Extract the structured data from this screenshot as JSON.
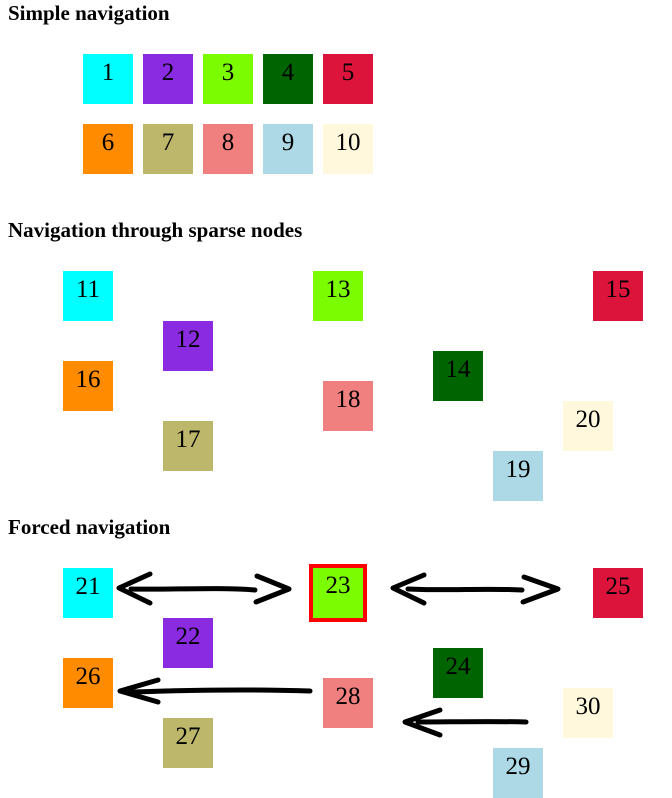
{
  "sections": {
    "simple": {
      "title": "Simple navigation"
    },
    "sparse": {
      "title": "Navigation through sparse nodes"
    },
    "forced": {
      "title": "Forced navigation"
    }
  },
  "colors": {
    "cyan": "#00ffff",
    "blueviolet": "#8a2be2",
    "lawngreen": "#7cfc00",
    "darkgreen": "#006400",
    "crimson": "#dc143c",
    "darkorange": "#ff8c00",
    "darkkhaki": "#bdb76b",
    "lightcoral": "#f08080",
    "lightblue": "#add8e6",
    "cornsilk": "#fff8dc",
    "focus_outline": "#ff0000",
    "arrow": "#000000"
  },
  "nodes": [
    {
      "label": "1",
      "color": "#00ffff"
    },
    {
      "label": "2",
      "color": "#8a2be2"
    },
    {
      "label": "3",
      "color": "#7cfc00"
    },
    {
      "label": "4",
      "color": "#006400"
    },
    {
      "label": "5",
      "color": "#dc143c"
    },
    {
      "label": "6",
      "color": "#ff8c00"
    },
    {
      "label": "7",
      "color": "#bdb76b"
    },
    {
      "label": "8",
      "color": "#f08080"
    },
    {
      "label": "9",
      "color": "#add8e6"
    },
    {
      "label": "10",
      "color": "#fff8dc"
    },
    {
      "label": "11",
      "color": "#00ffff"
    },
    {
      "label": "12",
      "color": "#8a2be2"
    },
    {
      "label": "13",
      "color": "#7cfc00"
    },
    {
      "label": "14",
      "color": "#006400"
    },
    {
      "label": "15",
      "color": "#dc143c"
    },
    {
      "label": "16",
      "color": "#ff8c00"
    },
    {
      "label": "17",
      "color": "#bdb76b"
    },
    {
      "label": "18",
      "color": "#f08080"
    },
    {
      "label": "19",
      "color": "#add8e6"
    },
    {
      "label": "20",
      "color": "#fff8dc"
    },
    {
      "label": "21",
      "color": "#00ffff"
    },
    {
      "label": "22",
      "color": "#8a2be2"
    },
    {
      "label": "23",
      "color": "#7cfc00",
      "focused": true
    },
    {
      "label": "24",
      "color": "#006400"
    },
    {
      "label": "25",
      "color": "#dc143c"
    },
    {
      "label": "26",
      "color": "#ff8c00"
    },
    {
      "label": "27",
      "color": "#bdb76b"
    },
    {
      "label": "28",
      "color": "#f08080"
    },
    {
      "label": "29",
      "color": "#add8e6"
    },
    {
      "label": "30",
      "color": "#fff8dc"
    }
  ]
}
